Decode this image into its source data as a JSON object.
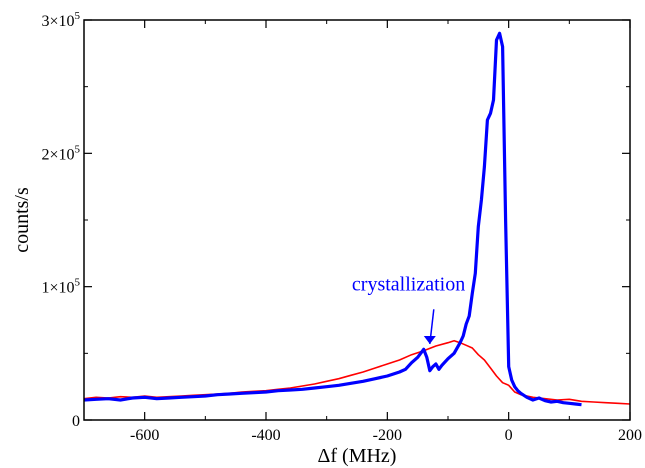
{
  "chart_data": {
    "type": "line",
    "xlabel": "Δf (MHz)",
    "ylabel": "counts/s",
    "xlim": [
      -700,
      200
    ],
    "ylim": [
      0,
      300000
    ],
    "grid": false,
    "x_ticks": [
      {
        "value": -600,
        "label": "-600"
      },
      {
        "value": -400,
        "label": "-400"
      },
      {
        "value": -200,
        "label": "-200"
      },
      {
        "value": 0,
        "label": "0"
      },
      {
        "value": 200,
        "label": "200"
      }
    ],
    "y_ticks": [
      {
        "value": 0,
        "mantissa": "0",
        "exp": ""
      },
      {
        "value": 100000,
        "mantissa": "1×10",
        "exp": "5"
      },
      {
        "value": 200000,
        "mantissa": "2×10",
        "exp": "5"
      },
      {
        "value": 300000,
        "mantissa": "3×10",
        "exp": "5"
      }
    ],
    "annotation": {
      "text": "crystallization",
      "color": "#0000ff",
      "text_x": -165,
      "text_y": 97000,
      "arrow_from": [
        -130,
        83000
      ],
      "arrow_to": [
        -130,
        57000
      ]
    },
    "series": [
      {
        "color": "#ff0000",
        "stroke_width": 1.6,
        "x": [
          -700,
          -680,
          -660,
          -640,
          -620,
          -600,
          -580,
          -560,
          -540,
          -520,
          -500,
          -480,
          -460,
          -440,
          -420,
          -400,
          -380,
          -360,
          -340,
          -320,
          -300,
          -280,
          -260,
          -240,
          -220,
          -200,
          -180,
          -160,
          -140,
          -120,
          -100,
          -90,
          -80,
          -70,
          -60,
          -50,
          -40,
          -30,
          -20,
          -10,
          0,
          10,
          20,
          30,
          40,
          60,
          80,
          100,
          120,
          140,
          160,
          180,
          200
        ],
        "y": [
          16000,
          17000,
          16500,
          17500,
          17000,
          18000,
          17000,
          17500,
          18000,
          18500,
          19000,
          19500,
          20000,
          21000,
          21500,
          22000,
          23000,
          24000,
          25500,
          27000,
          29000,
          31000,
          33500,
          36000,
          39000,
          42000,
          45000,
          49000,
          52000,
          55500,
          58000,
          59500,
          58000,
          56000,
          54000,
          49000,
          45000,
          39000,
          33000,
          28000,
          26000,
          21000,
          19000,
          18000,
          17000,
          16000,
          15000,
          15500,
          14000,
          13500,
          13000,
          12500,
          12000
        ]
      },
      {
        "color": "#0000ff",
        "stroke_width": 3.2,
        "x": [
          -700,
          -680,
          -660,
          -640,
          -620,
          -600,
          -580,
          -560,
          -540,
          -520,
          -500,
          -480,
          -460,
          -440,
          -420,
          -400,
          -380,
          -360,
          -340,
          -320,
          -300,
          -280,
          -260,
          -240,
          -220,
          -200,
          -180,
          -170,
          -160,
          -150,
          -145,
          -140,
          -135,
          -130,
          -125,
          -120,
          -115,
          -110,
          -100,
          -90,
          -80,
          -75,
          -70,
          -65,
          -60,
          -55,
          -50,
          -45,
          -40,
          -35,
          -30,
          -25,
          -20,
          -15,
          -10,
          -5,
          0,
          5,
          10,
          15,
          20,
          30,
          40,
          50,
          60,
          70,
          80,
          90,
          100,
          110,
          120
        ],
        "y": [
          15000,
          15500,
          16000,
          15000,
          16500,
          17000,
          16000,
          16500,
          17000,
          17500,
          18000,
          19000,
          19500,
          20000,
          20500,
          21000,
          22000,
          22500,
          23000,
          24000,
          25000,
          26000,
          27500,
          29000,
          31000,
          33000,
          36000,
          38000,
          43000,
          47000,
          50000,
          53000,
          47000,
          37000,
          40000,
          42000,
          38000,
          41000,
          46000,
          50000,
          58000,
          63000,
          72000,
          78000,
          95000,
          110000,
          145000,
          165000,
          190000,
          225000,
          230000,
          240000,
          285000,
          290000,
          280000,
          150000,
          40000,
          30000,
          25000,
          22000,
          20000,
          17000,
          15000,
          16500,
          14500,
          13500,
          14000,
          13000,
          12500,
          12000,
          11500
        ]
      }
    ]
  }
}
